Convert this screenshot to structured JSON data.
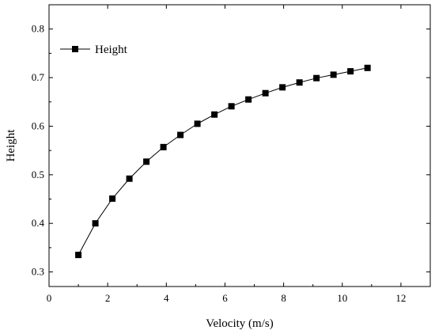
{
  "chart_data": {
    "type": "line",
    "xlabel": "Velocity (m/s)",
    "ylabel": "Height",
    "xlim": [
      0,
      13
    ],
    "ylim": [
      0.27,
      0.85
    ],
    "x_ticks": [
      0,
      2,
      4,
      6,
      8,
      10,
      12
    ],
    "y_ticks": [
      0.3,
      0.4,
      0.5,
      0.6,
      0.7,
      0.8
    ],
    "grid": false,
    "legend_position": "top-left",
    "marker": "square",
    "series": [
      {
        "name": "Height",
        "color": "#000000",
        "x": [
          1.0,
          1.58,
          2.16,
          2.74,
          3.32,
          3.9,
          4.48,
          5.06,
          5.64,
          6.22,
          6.8,
          7.38,
          7.96,
          8.54,
          9.12,
          9.7,
          10.28,
          10.86
        ],
        "y": [
          0.335,
          0.4,
          0.451,
          0.492,
          0.527,
          0.557,
          0.582,
          0.605,
          0.624,
          0.641,
          0.655,
          0.668,
          0.68,
          0.69,
          0.699,
          0.706,
          0.713,
          0.72
        ]
      }
    ]
  }
}
